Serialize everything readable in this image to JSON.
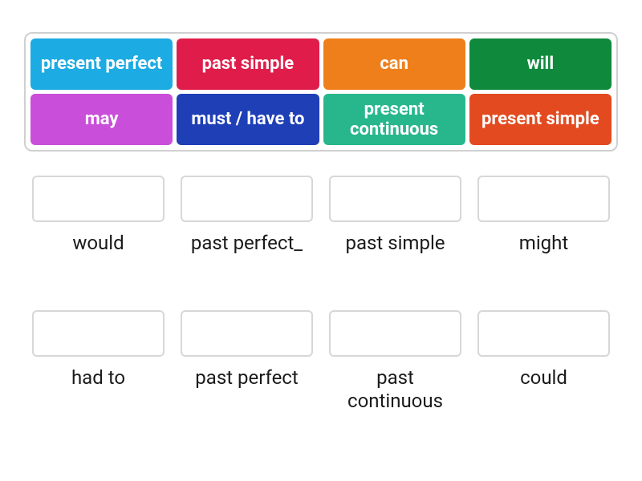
{
  "tile_bank": {
    "border_color": "#d0d0d0",
    "tiles": [
      {
        "label": "present perfect",
        "bg": "#1dabe3"
      },
      {
        "label": "past simple",
        "bg": "#e01d4a"
      },
      {
        "label": "can",
        "bg": "#ef7f1a"
      },
      {
        "label": "will",
        "bg": "#0f8a3c"
      },
      {
        "label": "may",
        "bg": "#c94ed9"
      },
      {
        "label": "must / have to",
        "bg": "#1f3fb7"
      },
      {
        "label": "present continuous",
        "bg": "#28b78d"
      },
      {
        "label": "present simple",
        "bg": "#e34a1f"
      }
    ],
    "tile_style": {
      "font_size": 22,
      "font_weight": 700,
      "text_color": "#ffffff",
      "height": 64,
      "border_radius": 6
    }
  },
  "targets": [
    {
      "label": "would"
    },
    {
      "label": "past perfect_"
    },
    {
      "label": "past simple"
    },
    {
      "label": "might"
    },
    {
      "label": "had to"
    },
    {
      "label": "past perfect"
    },
    {
      "label": "past continuous"
    },
    {
      "label": "could"
    }
  ],
  "drop_slot_style": {
    "border_color": "#d7d7d7",
    "background": "#ffffff",
    "height": 58,
    "border_radius": 6
  },
  "target_label_style": {
    "font_size": 24,
    "color": "#1a1a1a"
  },
  "layout": {
    "bank_columns": 4,
    "target_columns": 4,
    "background": "#ffffff"
  }
}
